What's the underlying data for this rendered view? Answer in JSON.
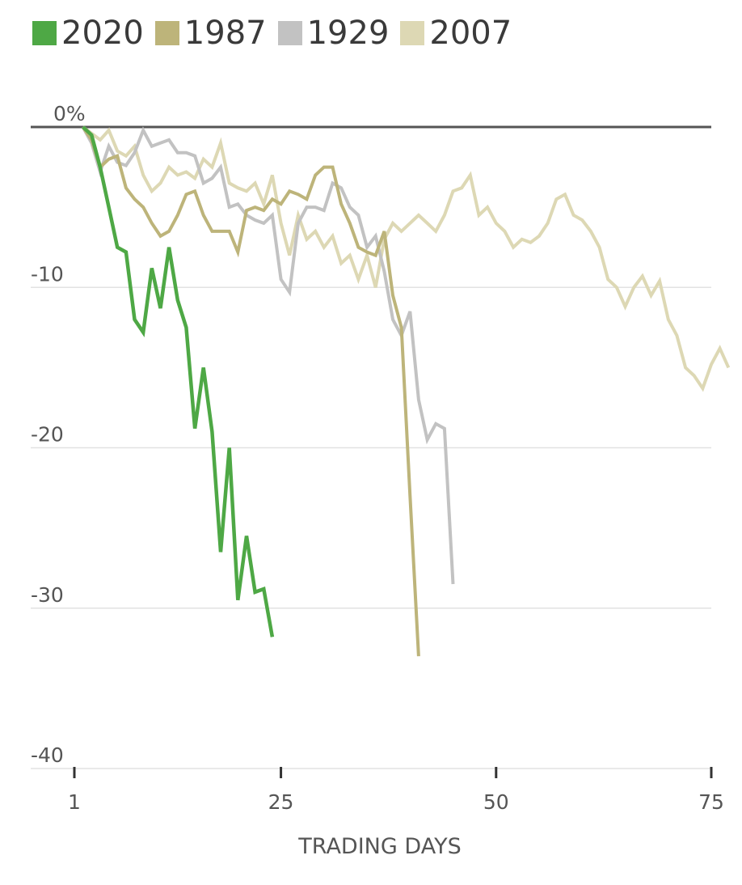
{
  "chart_data": {
    "type": "line",
    "title": "",
    "xlabel": "TRADING DAYS",
    "ylabel": "",
    "xlim": [
      1,
      75
    ],
    "ylim": [
      -40,
      0
    ],
    "grid": true,
    "legend_position": "top-left",
    "x_ticks": [
      1,
      25,
      50,
      75
    ],
    "x_tick_labels": [
      "1",
      "25",
      "50",
      "75"
    ],
    "y_ticks": [
      0,
      -10,
      -20,
      -30,
      -40
    ],
    "y_tick_labels": [
      "0%",
      "-10",
      "-20",
      "-30",
      "-40"
    ],
    "series": [
      {
        "name": "2007",
        "color": "#ddd8b4",
        "values": [
          [
            2,
            0
          ],
          [
            3,
            -0.4
          ],
          [
            4,
            -0.8
          ],
          [
            5,
            -0.2
          ],
          [
            6,
            -1.5
          ],
          [
            7,
            -1.8
          ],
          [
            8,
            -1.2
          ],
          [
            9,
            -3
          ],
          [
            10,
            -4
          ],
          [
            11,
            -3.5
          ],
          [
            12,
            -2.5
          ],
          [
            13,
            -3
          ],
          [
            14,
            -2.8
          ],
          [
            15,
            -3.2
          ],
          [
            16,
            -2
          ],
          [
            17,
            -2.5
          ],
          [
            18,
            -1
          ],
          [
            19,
            -3.5
          ],
          [
            20,
            -3.8
          ],
          [
            21,
            -4
          ],
          [
            22,
            -3.5
          ],
          [
            23,
            -4.8
          ],
          [
            24,
            -3
          ],
          [
            25,
            -6
          ],
          [
            26,
            -8
          ],
          [
            27,
            -5.5
          ],
          [
            28,
            -7
          ],
          [
            29,
            -6.5
          ],
          [
            30,
            -7.5
          ],
          [
            31,
            -6.8
          ],
          [
            32,
            -8.5
          ],
          [
            33,
            -8
          ],
          [
            34,
            -9.5
          ],
          [
            35,
            -8
          ],
          [
            36,
            -10
          ],
          [
            37,
            -7
          ],
          [
            38,
            -6
          ],
          [
            39,
            -6.5
          ],
          [
            40,
            -6
          ],
          [
            41,
            -5.5
          ],
          [
            42,
            -6
          ],
          [
            43,
            -6.5
          ],
          [
            44,
            -5.5
          ],
          [
            45,
            -4
          ],
          [
            46,
            -3.8
          ],
          [
            47,
            -3
          ],
          [
            48,
            -5.5
          ],
          [
            49,
            -5
          ],
          [
            50,
            -6
          ],
          [
            51,
            -6.5
          ],
          [
            52,
            -7.5
          ],
          [
            53,
            -7
          ],
          [
            54,
            -7.2
          ],
          [
            55,
            -6.8
          ],
          [
            56,
            -6
          ],
          [
            57,
            -4.5
          ],
          [
            58,
            -4.2
          ],
          [
            59,
            -5.5
          ],
          [
            60,
            -5.8
          ],
          [
            61,
            -6.5
          ],
          [
            62,
            -7.5
          ],
          [
            63,
            -9.5
          ],
          [
            64,
            -10
          ],
          [
            65,
            -11.2
          ],
          [
            66,
            -10
          ],
          [
            67,
            -9.3
          ],
          [
            68,
            -10.5
          ],
          [
            69,
            -9.6
          ],
          [
            70,
            -12
          ],
          [
            71,
            -13
          ],
          [
            72,
            -15
          ],
          [
            73,
            -15.5
          ],
          [
            74,
            -16.3
          ],
          [
            75,
            -14.8
          ],
          [
            76,
            -13.8
          ],
          [
            77,
            -15
          ]
        ]
      },
      {
        "name": "1929",
        "color": "#c2c2c2",
        "values": [
          [
            2,
            0
          ],
          [
            3,
            -1
          ],
          [
            4,
            -2.8
          ],
          [
            5,
            -1.2
          ],
          [
            6,
            -2.2
          ],
          [
            7,
            -2.4
          ],
          [
            8,
            -1.6
          ],
          [
            9,
            -0.2
          ],
          [
            10,
            -1.2
          ],
          [
            11,
            -1
          ],
          [
            12,
            -0.8
          ],
          [
            13,
            -1.6
          ],
          [
            14,
            -1.6
          ],
          [
            15,
            -1.8
          ],
          [
            16,
            -3.5
          ],
          [
            17,
            -3.2
          ],
          [
            18,
            -2.5
          ],
          [
            19,
            -5
          ],
          [
            20,
            -4.8
          ],
          [
            21,
            -5.5
          ],
          [
            22,
            -5.8
          ],
          [
            23,
            -6
          ],
          [
            24,
            -5.5
          ],
          [
            25,
            -9.5
          ],
          [
            26,
            -10.3
          ],
          [
            27,
            -6
          ],
          [
            28,
            -5
          ],
          [
            29,
            -5
          ],
          [
            30,
            -5.2
          ],
          [
            31,
            -3.5
          ],
          [
            32,
            -3.8
          ],
          [
            33,
            -5
          ],
          [
            34,
            -5.5
          ],
          [
            35,
            -7.5
          ],
          [
            36,
            -6.8
          ],
          [
            37,
            -9
          ],
          [
            38,
            -12
          ],
          [
            39,
            -13
          ],
          [
            40,
            -11.5
          ],
          [
            41,
            -17
          ],
          [
            42,
            -19.5
          ],
          [
            43,
            -18.5
          ],
          [
            44,
            -18.8
          ],
          [
            45,
            -28.5
          ]
        ]
      },
      {
        "name": "1987",
        "color": "#bdb47a",
        "values": [
          [
            2,
            0
          ],
          [
            3,
            -0.8
          ],
          [
            4,
            -2.5
          ],
          [
            5,
            -2
          ],
          [
            6,
            -1.8
          ],
          [
            7,
            -3.8
          ],
          [
            8,
            -4.5
          ],
          [
            9,
            -5
          ],
          [
            10,
            -6
          ],
          [
            11,
            -6.8
          ],
          [
            12,
            -6.5
          ],
          [
            13,
            -5.5
          ],
          [
            14,
            -4.2
          ],
          [
            15,
            -4
          ],
          [
            16,
            -5.5
          ],
          [
            17,
            -6.5
          ],
          [
            18,
            -6.5
          ],
          [
            19,
            -6.5
          ],
          [
            20,
            -7.8
          ],
          [
            21,
            -5.2
          ],
          [
            22,
            -5
          ],
          [
            23,
            -5.2
          ],
          [
            24,
            -4.5
          ],
          [
            25,
            -4.8
          ],
          [
            26,
            -4
          ],
          [
            27,
            -4.2
          ],
          [
            28,
            -4.5
          ],
          [
            29,
            -3
          ],
          [
            30,
            -2.5
          ],
          [
            31,
            -2.5
          ],
          [
            32,
            -4.8
          ],
          [
            33,
            -6
          ],
          [
            34,
            -7.5
          ],
          [
            35,
            -7.8
          ],
          [
            36,
            -8
          ],
          [
            37,
            -6.5
          ],
          [
            38,
            -10.5
          ],
          [
            39,
            -12.5
          ],
          [
            40,
            -23
          ],
          [
            41,
            -33
          ]
        ]
      },
      {
        "name": "2020",
        "color": "#4ea845",
        "values": [
          [
            2,
            0
          ],
          [
            3,
            -0.5
          ],
          [
            4,
            -2.5
          ],
          [
            5,
            -5
          ],
          [
            6,
            -7.5
          ],
          [
            7,
            -7.8
          ],
          [
            8,
            -12
          ],
          [
            9,
            -12.8
          ],
          [
            10,
            -8.8
          ],
          [
            11,
            -11.3
          ],
          [
            12,
            -7.5
          ],
          [
            13,
            -10.8
          ],
          [
            14,
            -12.5
          ],
          [
            15,
            -18.8
          ],
          [
            16,
            -15
          ],
          [
            17,
            -19
          ],
          [
            18,
            -26.5
          ],
          [
            19,
            -20
          ],
          [
            20,
            -29.5
          ],
          [
            21,
            -25.5
          ],
          [
            22,
            -29
          ],
          [
            23,
            -28.8
          ],
          [
            24,
            -31.8
          ]
        ]
      }
    ]
  },
  "legend": [
    {
      "label": "2020",
      "color": "#4ea845"
    },
    {
      "label": "1987",
      "color": "#bdb47a"
    },
    {
      "label": "1929",
      "color": "#c2c2c2"
    },
    {
      "label": "2007",
      "color": "#ddd8b4"
    }
  ]
}
